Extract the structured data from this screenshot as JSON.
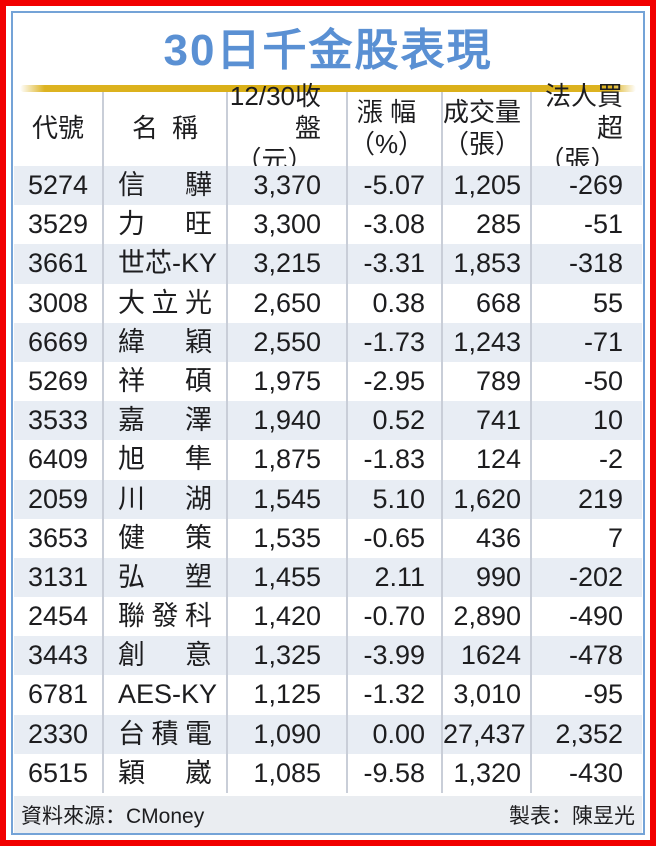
{
  "title": "30日千金股表現",
  "chart_data": {
    "type": "table",
    "title": "30日千金股表現",
    "columns": [
      "代號",
      "名稱",
      "12/30收盤（元）",
      "漲幅（%）",
      "成交量（張）",
      "法人買超（張）"
    ],
    "header_lines": [
      {
        "line1": "代號",
        "line2": ""
      },
      {
        "line1": "名稱",
        "line2": ""
      },
      {
        "line1": "12/30收盤",
        "line2": "（元）"
      },
      {
        "line1": "漲 幅",
        "line2": "（%）"
      },
      {
        "line1": "成交量",
        "line2": "（張）"
      },
      {
        "line1": "法人買超",
        "line2": "（張）"
      }
    ],
    "rows": [
      [
        "5274",
        "信驊",
        "3,370",
        "-5.07",
        "1,205",
        "-269"
      ],
      [
        "3529",
        "力旺",
        "3,300",
        "-3.08",
        "285",
        "-51"
      ],
      [
        "3661",
        "世芯-KY",
        "3,215",
        "-3.31",
        "1,853",
        "-318"
      ],
      [
        "3008",
        "大立光",
        "2,650",
        "0.38",
        "668",
        "55"
      ],
      [
        "6669",
        "緯穎",
        "2,550",
        "-1.73",
        "1,243",
        "-71"
      ],
      [
        "5269",
        "祥碩",
        "1,975",
        "-2.95",
        "789",
        "-50"
      ],
      [
        "3533",
        "嘉澤",
        "1,940",
        "0.52",
        "741",
        "10"
      ],
      [
        "6409",
        "旭隼",
        "1,875",
        "-1.83",
        "124",
        "-2"
      ],
      [
        "2059",
        "川湖",
        "1,545",
        "5.10",
        "1,620",
        "219"
      ],
      [
        "3653",
        "健策",
        "1,535",
        "-0.65",
        "436",
        "7"
      ],
      [
        "3131",
        "弘塑",
        "1,455",
        "2.11",
        "990",
        "-202"
      ],
      [
        "2454",
        "聯發科",
        "1,420",
        "-0.70",
        "2,890",
        "-490"
      ],
      [
        "3443",
        "創意",
        "1,325",
        "-3.99",
        "1624",
        "-478"
      ],
      [
        "6781",
        "AES-KY",
        "1,125",
        "-1.32",
        "3,010",
        "-95"
      ],
      [
        "2330",
        "台積電",
        "1,090",
        "0.00",
        "27,437",
        "2,352"
      ],
      [
        "6515",
        "穎崴",
        "1,085",
        "-9.58",
        "1,320",
        "-430"
      ]
    ]
  },
  "footer": {
    "source": "資料來源：CMoney",
    "credit": "製表：陳昱光"
  },
  "colors": {
    "title_blue": "#5a90d3",
    "gold_bar": "#d9ae14",
    "row_alt": "#e8edf4",
    "footer_bg": "#eaedf1",
    "frame_red": "#f20000",
    "frame_blue": "#74a3d7",
    "separator": "#c9ced8",
    "text": "#1d1d1f"
  }
}
